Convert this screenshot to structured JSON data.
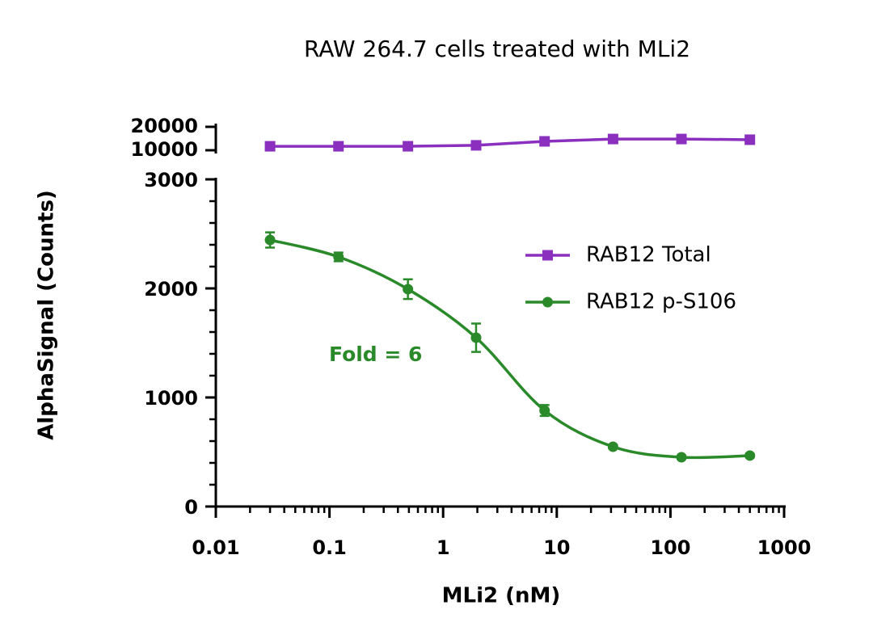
{
  "chart_data": {
    "type": "line",
    "title": "RAW 264.7 cells treated with MLi2",
    "x_label": "MLi2 (nM)",
    "y_label": "AlphaSignal (Counts)",
    "x_scale": "log",
    "x": [
      0.03,
      0.12,
      0.49,
      1.95,
      7.81,
      31.25,
      125,
      500
    ],
    "xlim": [
      0.01,
      1000
    ],
    "xticks": [
      0.01,
      0.1,
      1,
      10,
      100,
      1000
    ],
    "ylim": [
      0,
      3000
    ],
    "yticks": [
      0,
      1000,
      2000,
      3000
    ],
    "ylim_upper": [
      10000,
      20000
    ],
    "yticks_upper": [
      10000,
      20000
    ],
    "legend": "upper right",
    "series": [
      {
        "name": "RAB12 Total",
        "color": "#8a2fbe",
        "marker": "square",
        "axis": "upper",
        "values": [
          11700,
          11700,
          11700,
          12100,
          13800,
          14800,
          14800,
          14500
        ]
      },
      {
        "name": "RAB12 p-S106",
        "color": "#2a8a2a",
        "marker": "circle",
        "axis": "lower",
        "curve": "smooth",
        "values": [
          2444,
          2289,
          1993,
          1548,
          881,
          548,
          452,
          467
        ],
        "errors": [
          70,
          40,
          90,
          130,
          50,
          15,
          15,
          15
        ]
      }
    ],
    "annotations": [
      {
        "text": "Fold = 6",
        "color": "#2a8a2a"
      }
    ]
  }
}
